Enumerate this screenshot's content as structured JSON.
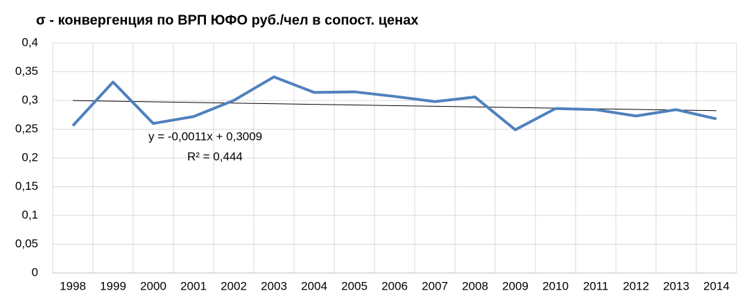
{
  "chart_data": {
    "type": "line",
    "title": "σ - конвергенция по ВРП ЮФО руб./чел в сопост.  ценах",
    "categories": [
      "1998",
      "1999",
      "2000",
      "2001",
      "2002",
      "2003",
      "2004",
      "2005",
      "2006",
      "2007",
      "2008",
      "2009",
      "2010",
      "2011",
      "2012",
      "2013",
      "2014"
    ],
    "series": [
      {
        "name": "σ",
        "color": "#4f81bd",
        "values": [
          0.256,
          0.332,
          0.26,
          0.272,
          0.3,
          0.341,
          0.314,
          0.315,
          0.307,
          0.298,
          0.306,
          0.249,
          0.286,
          0.284,
          0.273,
          0.284,
          0.268
        ]
      }
    ],
    "ylim": [
      0,
      0.4
    ],
    "yticks": [
      0,
      {
        "value": 0.05,
        "label": "0,05"
      },
      {
        "value": 0.1,
        "label": "0,1"
      },
      {
        "value": 0.15,
        "label": "0,15"
      },
      {
        "value": 0.2,
        "label": "0,2"
      },
      {
        "value": 0.25,
        "label": "0,25"
      },
      {
        "value": 0.3,
        "label": "0,3"
      },
      {
        "value": 0.35,
        "label": "0,35"
      },
      {
        "value": 0.4,
        "label": "0,4"
      }
    ],
    "grid": true,
    "trendline": {
      "slope": -0.0011,
      "intercept": 0.3009,
      "color": "#000000",
      "equation": "y = -0,0011x + 0,3009",
      "r2": "R² = 0,444"
    }
  }
}
